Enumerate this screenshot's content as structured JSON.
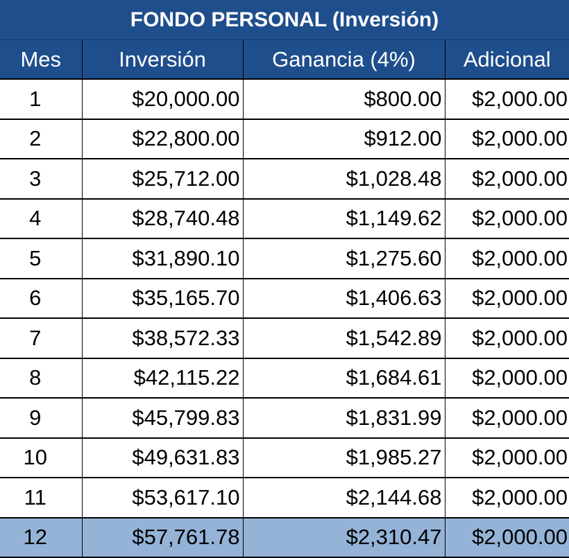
{
  "table": {
    "title": "FONDO PERSONAL (Inversión)",
    "columns": [
      "Mes",
      "Inversión",
      "Ganancia (4%)",
      "Adicional"
    ],
    "rows": [
      [
        "1",
        "$20,000.00",
        "$800.00",
        "$2,000.00"
      ],
      [
        "2",
        "$22,800.00",
        "$912.00",
        "$2,000.00"
      ],
      [
        "3",
        "$25,712.00",
        "$1,028.48",
        "$2,000.00"
      ],
      [
        "4",
        "$28,740.48",
        "$1,149.62",
        "$2,000.00"
      ],
      [
        "5",
        "$31,890.10",
        "$1,275.60",
        "$2,000.00"
      ],
      [
        "6",
        "$35,165.70",
        "$1,406.63",
        "$2,000.00"
      ],
      [
        "7",
        "$38,572.33",
        "$1,542.89",
        "$2,000.00"
      ],
      [
        "8",
        "$42,115.22",
        "$1,684.61",
        "$2,000.00"
      ],
      [
        "9",
        "$45,799.83",
        "$1,831.99",
        "$2,000.00"
      ],
      [
        "10",
        "$49,631.83",
        "$1,985.27",
        "$2,000.00"
      ],
      [
        "11",
        "$53,617.10",
        "$2,144.68",
        "$2,000.00"
      ],
      [
        "12",
        "$57,761.78",
        "$2,310.47",
        "$2,000.00"
      ]
    ],
    "highlight_row_index": 11,
    "colors": {
      "header_background": "#1f4e8c",
      "header_text": "#ffffff",
      "highlight_background": "#95b3d7"
    }
  }
}
